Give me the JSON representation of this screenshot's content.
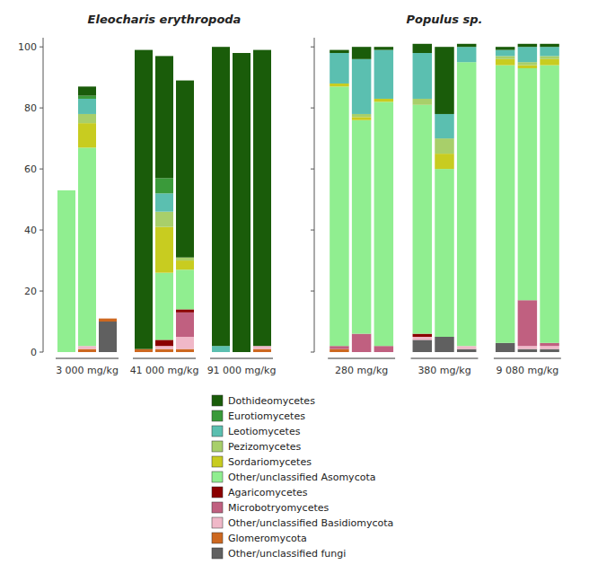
{
  "chart_data": [
    {
      "type": "bar",
      "stacked": true,
      "title": "Eleocharis erythropoda",
      "legend": "bottom",
      "categories": [
        null,
        "3 000 mg/kg",
        null,
        null,
        "41 000 mg/kg",
        null,
        null,
        "91 000 mg/kg",
        null
      ],
      "ylim": [
        0,
        103
      ],
      "yticks": [
        0,
        20,
        40,
        60,
        80,
        100
      ],
      "series": [
        {
          "name": "Dothideomycetes",
          "color": "#1a5c0a",
          "values": [
            0,
            3,
            0,
            98,
            40,
            58,
            98,
            98,
            97
          ]
        },
        {
          "name": "Eurotiomycetes",
          "color": "#3a9a3a",
          "values": [
            0,
            1,
            0,
            0,
            5,
            0,
            0,
            0,
            0
          ]
        },
        {
          "name": "Leotiomycetes",
          "color": "#5bbfb0",
          "values": [
            0,
            5,
            0,
            0,
            6,
            0,
            2,
            0,
            0
          ]
        },
        {
          "name": "Pezizomycetes",
          "color": "#a8cf6a",
          "values": [
            0,
            3,
            0,
            0,
            5,
            1,
            0,
            0,
            0
          ]
        },
        {
          "name": "Sordariomycetes",
          "color": "#c8cc20",
          "values": [
            0,
            8,
            0,
            0,
            15,
            3,
            0,
            0,
            0
          ]
        },
        {
          "name": "Other/unclassified Asomycota",
          "color": "#90ee90",
          "values": [
            53,
            65,
            0,
            0,
            22,
            13,
            0,
            0,
            0
          ]
        },
        {
          "name": "Agaricomycetes",
          "color": "#8b0000",
          "values": [
            0,
            0,
            0,
            0,
            2,
            1,
            0,
            0,
            0
          ]
        },
        {
          "name": "Microbotryomycetes",
          "color": "#c06080",
          "values": [
            0,
            0,
            0,
            0,
            0,
            8,
            0,
            0,
            0
          ]
        },
        {
          "name": "Other/unclassified Basidiomycota",
          "color": "#f0b8c8",
          "values": [
            0,
            1,
            0,
            0,
            1,
            4,
            0,
            0,
            1
          ]
        },
        {
          "name": "Glomeromycota",
          "color": "#cd6820",
          "values": [
            0,
            1,
            1,
            1,
            1,
            1,
            0,
            0,
            1
          ]
        },
        {
          "name": "Other/unclassified fungi",
          "color": "#606060",
          "values": [
            0,
            0,
            10,
            0,
            0,
            0,
            0,
            0,
            0
          ]
        }
      ]
    },
    {
      "type": "bar",
      "stacked": true,
      "title": "Populus sp.",
      "tick_labels": "x",
      "categories": [
        null,
        "280 mg/kg",
        null,
        null,
        "380 mg/kg",
        null,
        null,
        "9 080 mg/kg",
        null
      ],
      "ylim": [
        0,
        103
      ],
      "yticks": [
        0,
        20,
        40,
        60,
        80,
        100
      ],
      "series": [
        {
          "color": "#1a5c0a",
          "values": [
            1,
            4,
            1,
            3,
            22,
            1,
            1,
            1,
            1
          ]
        },
        {
          "color": "#3a9a3a",
          "values": [
            0,
            0,
            0,
            0,
            0,
            0,
            0,
            0,
            0
          ]
        },
        {
          "color": "#5bbfb0",
          "values": [
            10,
            18,
            16,
            15,
            8,
            5,
            2,
            5,
            3
          ]
        },
        {
          "color": "#a8cf6a",
          "values": [
            0,
            1,
            0,
            2,
            5,
            0,
            1,
            1,
            1
          ]
        },
        {
          "color": "#c8cc20",
          "values": [
            1,
            1,
            1,
            0,
            5,
            0,
            2,
            1,
            2
          ]
        },
        {
          "color": "#90ee90",
          "values": [
            85,
            70,
            80,
            75,
            55,
            93,
            91,
            76,
            91
          ]
        },
        {
          "color": "#8b0000",
          "values": [
            0,
            0,
            0,
            1,
            0,
            0,
            0,
            0,
            0
          ]
        },
        {
          "color": "#c06080",
          "values": [
            1,
            6,
            2,
            0,
            0,
            0,
            0,
            15,
            1
          ]
        },
        {
          "color": "#f0b8c8",
          "values": [
            0,
            0,
            0,
            1,
            0,
            1,
            0,
            1,
            1
          ]
        },
        {
          "color": "#cd6820",
          "values": [
            1,
            0,
            0,
            0,
            0,
            0,
            0,
            0,
            0
          ]
        },
        {
          "color": "#606060",
          "values": [
            0,
            0,
            0,
            4,
            5,
            1,
            3,
            1,
            1
          ]
        }
      ]
    }
  ]
}
